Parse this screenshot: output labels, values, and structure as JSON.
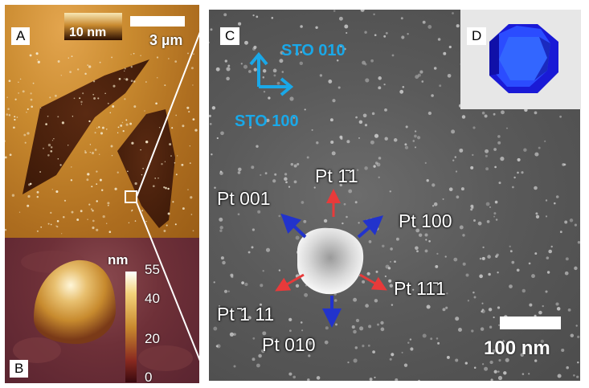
{
  "panel_a": {
    "label": "A",
    "height_scale_label": "10 nm",
    "scale_bar_label": "3 µm"
  },
  "panel_b": {
    "label": "B",
    "colorbar_unit": "nm",
    "colorbar_ticks": [
      "55",
      "40",
      "20",
      "0"
    ]
  },
  "panel_c": {
    "label": "C",
    "substrate_axes": [
      "STO 010",
      "STO 100"
    ],
    "direction_labels": {
      "pt_001": "Pt 001",
      "pt_1m11": "Pt 1̄1",
      "pt_100": "Pt 100",
      "pt_m111": "Pt ̄1 11",
      "pt_11m1": "Pt 11̄1",
      "pt_010": "Pt 010"
    },
    "scale_bar_label": "100 nm"
  },
  "panel_d": {
    "label": "D"
  },
  "colors": {
    "accent_blue": "#1aa8e8",
    "arrow_blue": "#2233cc",
    "arrow_red": "#e83a3a"
  }
}
